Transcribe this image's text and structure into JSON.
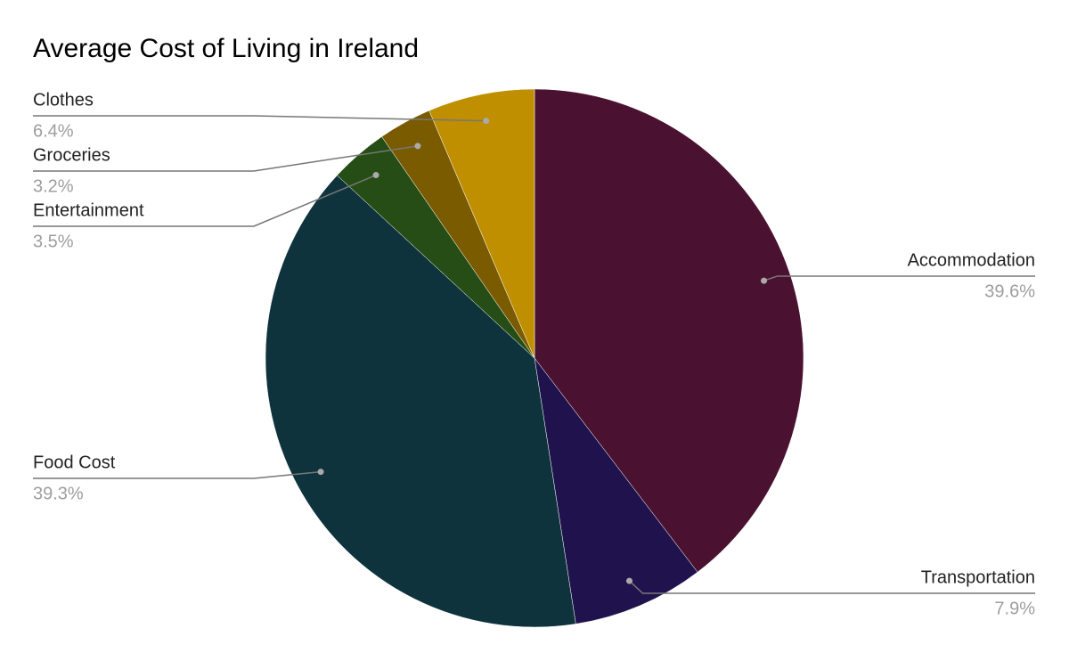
{
  "chart_data": {
    "type": "pie",
    "title": "Average Cost of Living in Ireland",
    "categories": [
      "Accommodation",
      "Transportation",
      "Food Cost",
      "Entertainment",
      "Groceries",
      "Clothes"
    ],
    "values": [
      39.6,
      7.9,
      39.3,
      3.5,
      3.2,
      6.4
    ],
    "value_labels": [
      "39.6%",
      "7.9%",
      "39.3%",
      "3.5%",
      "3.2%",
      "6.4%"
    ],
    "colors": [
      "#4a1230",
      "#20134d",
      "#0e333d",
      "#264d15",
      "#7a5b00",
      "#bf8f00"
    ]
  }
}
